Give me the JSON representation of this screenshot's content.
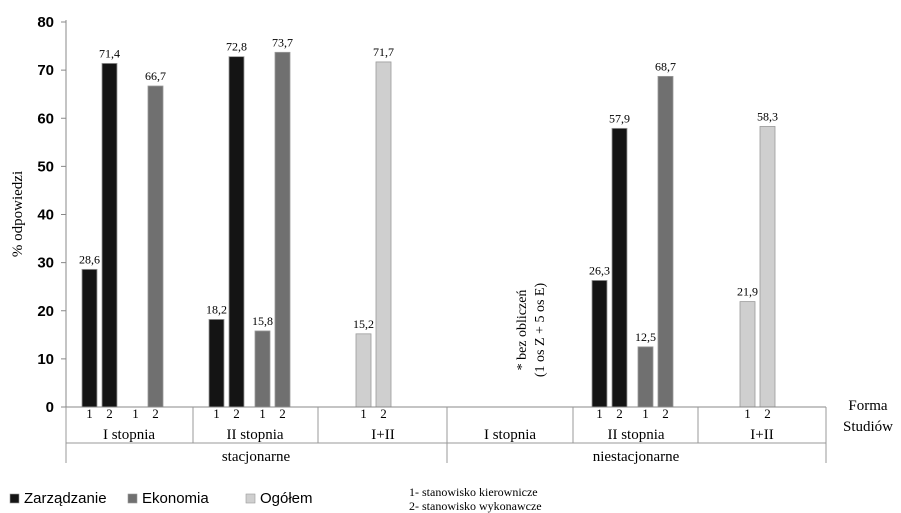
{
  "chart_data": {
    "type": "bar",
    "ylabel": "% odpowiedzi",
    "xlabel": "Forma Studiów",
    "ylim": [
      0,
      80
    ],
    "yticks": [
      0,
      10,
      20,
      30,
      40,
      50,
      60,
      70,
      80
    ],
    "grid": false,
    "colors": {
      "Zarządzanie": "#141414",
      "Ekonomia": "#707070",
      "Ogółem": "#cfcfcf"
    },
    "series_names": [
      "Zarządzanie",
      "Ekonomia",
      "Ogółem"
    ],
    "groups": [
      {
        "label": "I stopnia",
        "form": "stacjonarne",
        "bars": [
          {
            "series": "Zarządzanie",
            "code": "1",
            "value": 28.6,
            "value_label": "28,6"
          },
          {
            "series": "Zarządzanie",
            "code": "2",
            "value": 71.4,
            "value_label": "71,4"
          },
          {
            "series": "Ekonomia",
            "code": "1",
            "value": null,
            "value_label": ""
          },
          {
            "series": "Ekonomia",
            "code": "2",
            "value": 66.7,
            "value_label": "66,7"
          }
        ]
      },
      {
        "label": "II stopnia",
        "form": "stacjonarne",
        "bars": [
          {
            "series": "Zarządzanie",
            "code": "1",
            "value": 18.2,
            "value_label": "18,2"
          },
          {
            "series": "Zarządzanie",
            "code": "2",
            "value": 72.8,
            "value_label": "72,8"
          },
          {
            "series": "Ekonomia",
            "code": "1",
            "value": 15.8,
            "value_label": "15,8"
          },
          {
            "series": "Ekonomia",
            "code": "2",
            "value": 73.7,
            "value_label": "73,7"
          }
        ]
      },
      {
        "label": "I+II",
        "form": "stacjonarne",
        "bars": [
          {
            "series": "Ogółem",
            "code": "1",
            "value": 15.2,
            "value_label": "15,2"
          },
          {
            "series": "Ogółem",
            "code": "2",
            "value": 71.7,
            "value_label": "71,7"
          }
        ]
      },
      {
        "label": "I stopnia",
        "form": "niestacjonarne",
        "note_line1": "* bez obliczeń",
        "note_line2": "(1 os Z + 5 os E)",
        "bars": []
      },
      {
        "label": "II stopnia",
        "form": "niestacjonarne",
        "bars": [
          {
            "series": "Zarządzanie",
            "code": "1",
            "value": 26.3,
            "value_label": "26,3"
          },
          {
            "series": "Zarządzanie",
            "code": "2",
            "value": 57.9,
            "value_label": "57,9"
          },
          {
            "series": "Ekonomia",
            "code": "1",
            "value": 12.5,
            "value_label": "12,5"
          },
          {
            "series": "Ekonomia",
            "code": "2",
            "value": 68.7,
            "value_label": "68,7"
          }
        ]
      },
      {
        "label": "I+II",
        "form": "niestacjonarne",
        "bars": [
          {
            "series": "Ogółem",
            "code": "1",
            "value": 21.9,
            "value_label": "21,9"
          },
          {
            "series": "Ogółem",
            "code": "2",
            "value": 58.3,
            "value_label": "58,3"
          }
        ]
      }
    ],
    "forms": [
      "stacjonarne",
      "niestacjonarne"
    ],
    "legend": [
      {
        "name": "Zarządzanie",
        "color": "#141414"
      },
      {
        "name": "Ekonomia",
        "color": "#707070"
      },
      {
        "name": "Ogółem",
        "color": "#cfcfcf"
      }
    ],
    "legend_placement": "bottom-left",
    "code_legend": [
      "1- stanowisko kierownicze",
      "2- stanowisko wykonawcze"
    ]
  }
}
